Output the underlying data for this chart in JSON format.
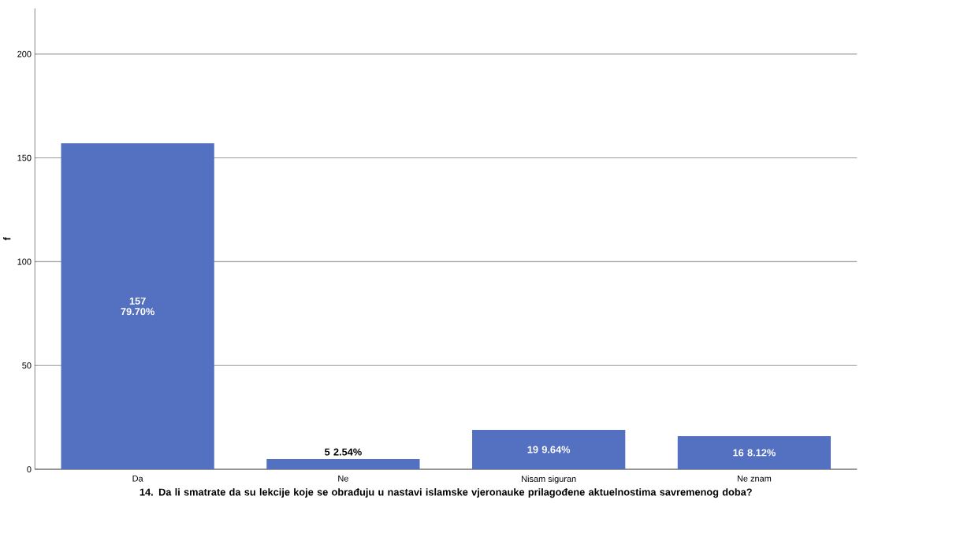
{
  "chart_data": {
    "type": "bar",
    "xlabel": "14. Da li smatrate da su lekcije koje se obrađuju u nastavi islamske vjeronauke prilagođene aktuelnostima  savremenog  doba?",
    "ylabel": "f",
    "categories": [
      "Da",
      "Ne",
      "Nisam siguran",
      "Ne znam"
    ],
    "values": [
      157,
      5,
      19,
      16
    ],
    "value_labels": [
      "157 79.70%",
      "5 2.54%",
      "19 9.64%",
      "16 8.12%"
    ],
    "color": "#5470c0",
    "ylim": [
      0,
      222
    ],
    "yticks": [
      0,
      50,
      100,
      150,
      200
    ],
    "grid": "y"
  }
}
